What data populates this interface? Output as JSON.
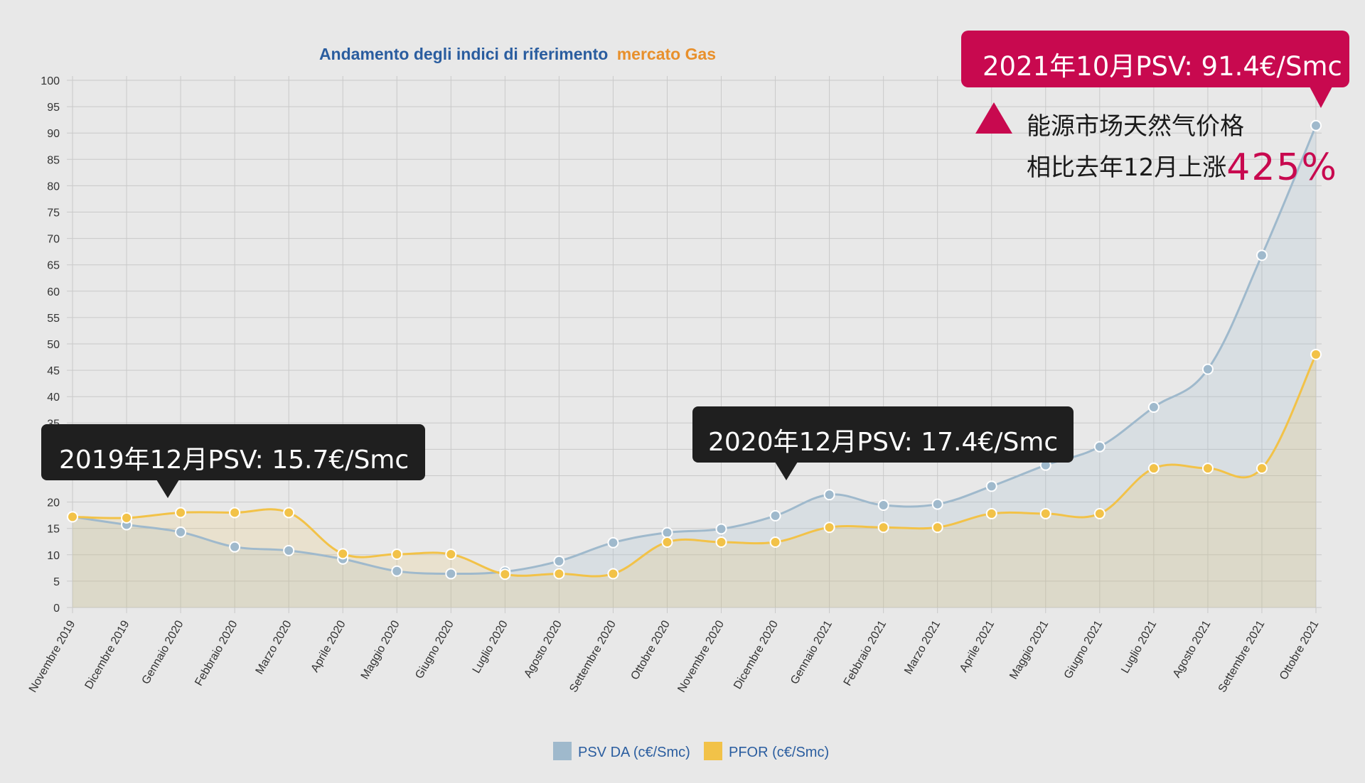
{
  "chart_data": {
    "type": "area",
    "title_parts": [
      "Andamento degli indici di riferimento",
      "mercato Gas"
    ],
    "title_colors": [
      "#2a5d9f",
      "#e8902c"
    ],
    "xlabel": "",
    "ylabel": "",
    "ylim": [
      0,
      100
    ],
    "ytick_step": 5,
    "grid": true,
    "legend_position": "bottom-center",
    "categories": [
      "Novembre 2019",
      "Dicembre 2019",
      "Gennaio 2020",
      "Febbraio 2020",
      "Marzo 2020",
      "Aprile 2020",
      "Maggio 2020",
      "Giugno 2020",
      "Luglio 2020",
      "Agosto 2020",
      "Settembre 2020",
      "Ottobre 2020",
      "Novembre 2020",
      "Dicembre 2020",
      "Gennaio 2021",
      "Febbraio 2021",
      "Marzo 2021",
      "Aprile 2021",
      "Maggio 2021",
      "Giugno 2021",
      "Luglio 2021",
      "Agosto 2021",
      "Settembre 2021",
      "Ottobre 2021"
    ],
    "series": [
      {
        "name": "PSV DA (c€/Smc)",
        "color": "#9fb9cc",
        "values": [
          17.2,
          15.7,
          14.3,
          11.5,
          10.8,
          9.2,
          6.9,
          6.4,
          6.8,
          8.8,
          12.3,
          14.2,
          14.9,
          17.4,
          21.4,
          19.4,
          19.6,
          23.0,
          27.0,
          30.5,
          38.0,
          45.2,
          66.8,
          91.4
        ]
      },
      {
        "name": "PFOR (c€/Smc)",
        "color": "#f2c248",
        "values": [
          17.2,
          17.0,
          18.0,
          18.0,
          18.0,
          10.2,
          10.1,
          10.1,
          6.3,
          6.4,
          6.4,
          12.4,
          12.4,
          12.4,
          15.2,
          15.2,
          15.2,
          17.8,
          17.8,
          17.8,
          26.4,
          26.4,
          26.4,
          48.0
        ]
      }
    ]
  },
  "callouts": {
    "dec2019": "2019年12月PSV:  15.7€/Smc",
    "dec2020": "2020年12月PSV:  17.4€/Smc",
    "oct2021": "2021年10月PSV:  91.4€/Smc"
  },
  "note": {
    "line1": "能源市场天然气价格",
    "line2_prefix": "相比去年12月上涨",
    "percent": "425%",
    "icon": "up-triangle-icon",
    "accent_color": "#c8094f"
  }
}
